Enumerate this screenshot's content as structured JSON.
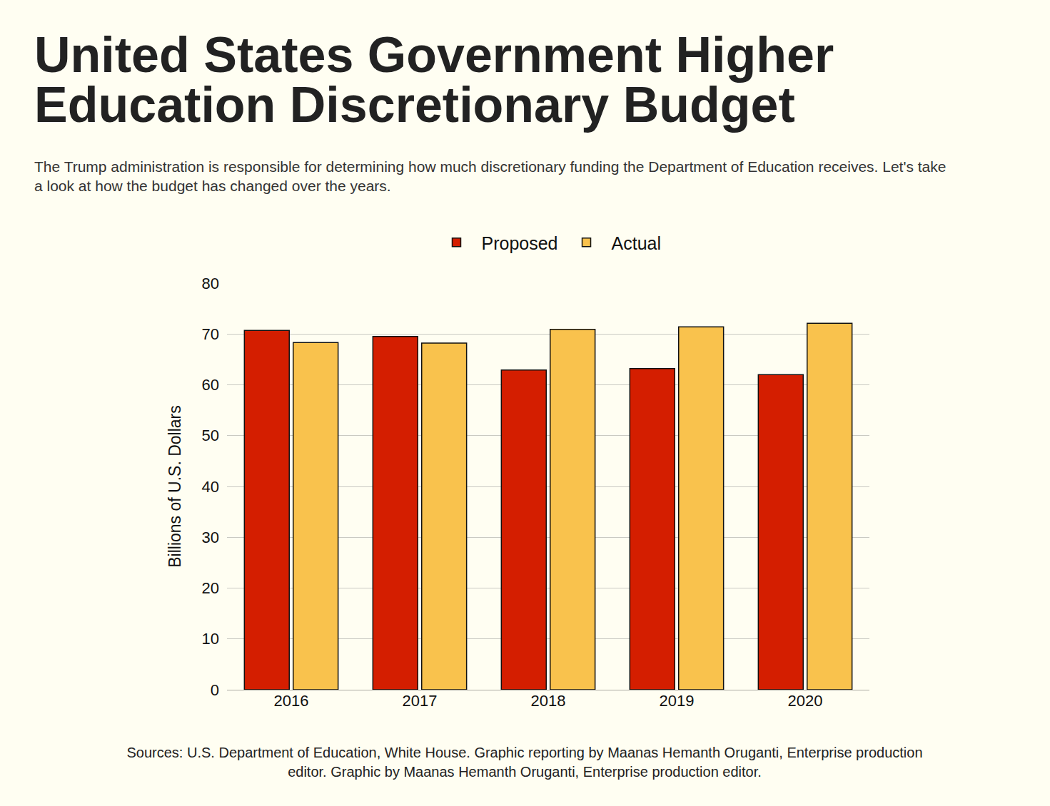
{
  "chart_data": {
    "type": "bar",
    "title": "United States Government Higher Education Discretionary Budget",
    "subtitle": "The Trump administration is responsible for determining how much discretionary funding the Department of Education receives. Let's take a look at how the budget has changed over the years.",
    "y_label": "Billions of U.S. Dollars",
    "categories": [
      "2016",
      "2017",
      "2018",
      "2019",
      "2020"
    ],
    "series": [
      {
        "name": "Proposed",
        "color": "#d41e00",
        "values": [
          70.7,
          69.5,
          62.9,
          63.2,
          62.0
        ]
      },
      {
        "name": "Actual",
        "color": "#f9c24d",
        "values": [
          68.3,
          68.2,
          70.9,
          71.4,
          72.1
        ]
      }
    ],
    "ylim": [
      0,
      80
    ],
    "yticks": [
      0,
      10,
      20,
      30,
      40,
      50,
      60,
      70,
      80
    ],
    "grid": true,
    "legend": "top",
    "annotations": [
      "Sources: U.S. Department of Education, White House. Graphic reporting by Maanas Hemanth Oruganti, Enterprise production editor. Graphic by Maanas Hemanth Oruganti, Enterprise production editor."
    ]
  }
}
